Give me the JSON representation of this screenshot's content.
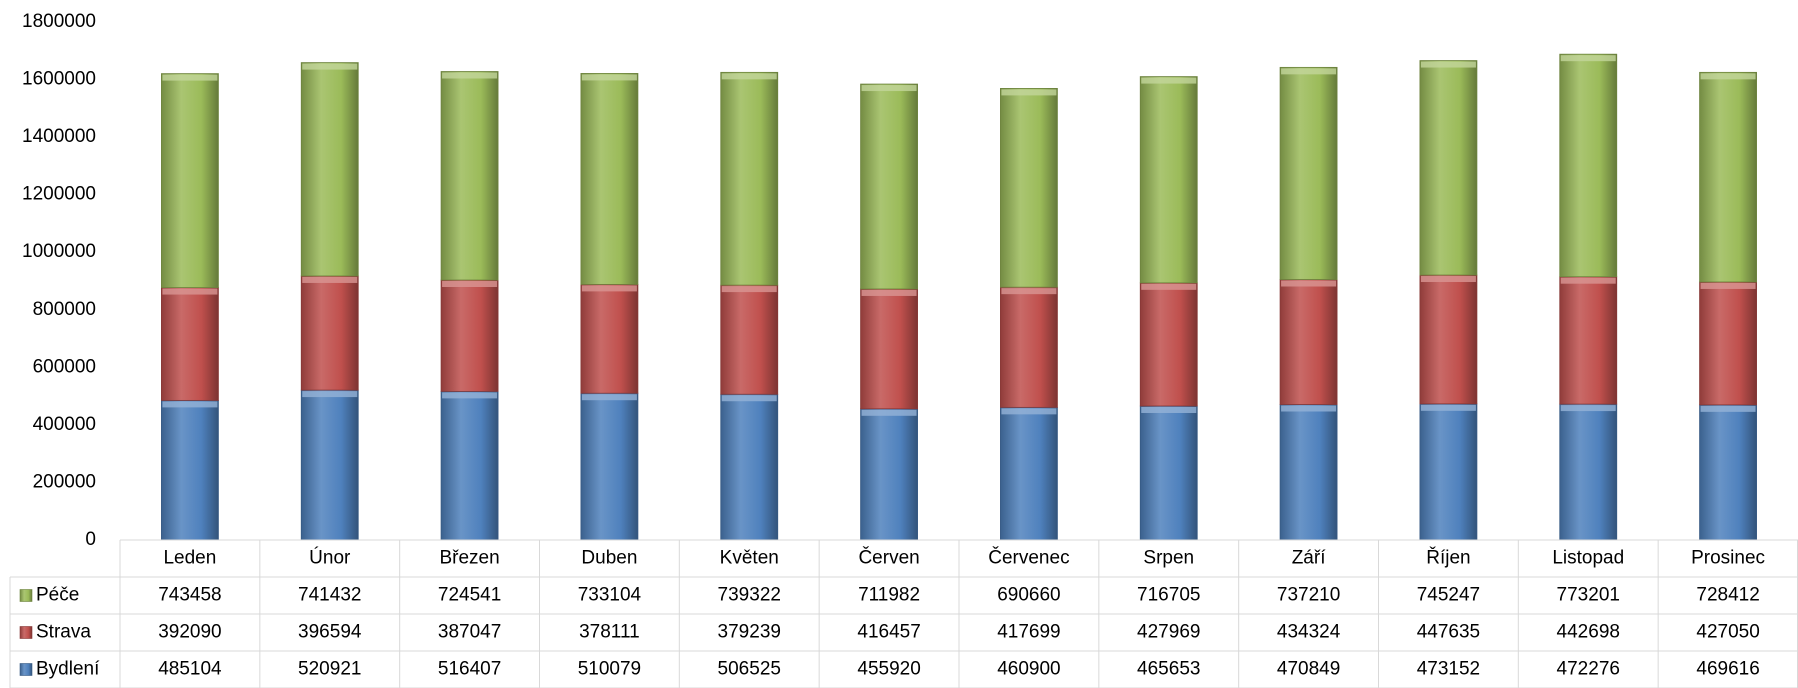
{
  "chart_data": {
    "type": "stacked_bar",
    "categories": [
      "Leden",
      "Únor",
      "Březen",
      "Duben",
      "Květen",
      "Červen",
      "Červenec",
      "Srpen",
      "Září",
      "Říjen",
      "Listopad",
      "Prosinec"
    ],
    "series": [
      {
        "name": "Péče",
        "color": "#9bbb59",
        "values": [
          743458,
          741432,
          724541,
          733104,
          739322,
          711982,
          690660,
          716705,
          737210,
          745247,
          773201,
          728412
        ]
      },
      {
        "name": "Strava",
        "color": "#c0504d",
        "values": [
          392090,
          396594,
          387047,
          378111,
          379239,
          416457,
          417699,
          427969,
          434324,
          447635,
          442698,
          427050
        ]
      },
      {
        "name": "Bydlení",
        "color": "#4f81bd",
        "values": [
          485104,
          520921,
          516407,
          510079,
          506525,
          455920,
          460900,
          465653,
          470849,
          473152,
          472276,
          469616
        ]
      }
    ],
    "ylim": [
      0,
      1800000
    ],
    "yticks": [
      0,
      200000,
      400000,
      600000,
      800000,
      1000000,
      1200000,
      1400000,
      1600000,
      1800000
    ],
    "grid": false,
    "data_table": true
  }
}
